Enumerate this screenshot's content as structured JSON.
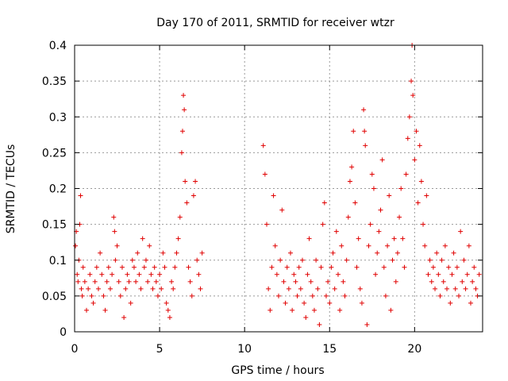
{
  "chart_data": {
    "type": "scatter",
    "title": "Day 170 of 2011, SRMTID for receiver wtzr",
    "xlabel": "GPS time / hours",
    "ylabel": "SRMTID / TECUs",
    "xlim": [
      0,
      24
    ],
    "ylim": [
      0,
      0.4
    ],
    "xticks": [
      0,
      5,
      10,
      15,
      20
    ],
    "yticks": [
      0,
      0.05,
      0.1,
      0.15,
      0.2,
      0.25,
      0.3,
      0.35,
      0.4
    ],
    "xtick_labels": [
      "0",
      "5",
      "10",
      "15",
      "20"
    ],
    "ytick_labels": [
      "0",
      "0.05",
      "0.1",
      "0.15",
      "0.2",
      "0.25",
      "0.3",
      "0.35",
      "0.4"
    ],
    "grid": true,
    "marker": "+",
    "marker_color": "#e00000",
    "series": [
      {
        "name": "SRMTID",
        "points": [
          [
            0.05,
            0.12
          ],
          [
            0.1,
            0.14
          ],
          [
            0.15,
            0.08
          ],
          [
            0.2,
            0.07
          ],
          [
            0.25,
            0.1
          ],
          [
            0.3,
            0.15
          ],
          [
            0.35,
            0.19
          ],
          [
            0.4,
            0.06
          ],
          [
            0.45,
            0.05
          ],
          [
            0.5,
            0.09
          ],
          [
            0.6,
            0.07
          ],
          [
            0.7,
            0.03
          ],
          [
            0.8,
            0.06
          ],
          [
            0.9,
            0.08
          ],
          [
            1.0,
            0.05
          ],
          [
            1.1,
            0.04
          ],
          [
            1.2,
            0.07
          ],
          [
            1.3,
            0.09
          ],
          [
            1.4,
            0.06
          ],
          [
            1.5,
            0.11
          ],
          [
            1.6,
            0.08
          ],
          [
            1.7,
            0.05
          ],
          [
            1.8,
            0.03
          ],
          [
            1.9,
            0.07
          ],
          [
            2.0,
            0.09
          ],
          [
            2.1,
            0.06
          ],
          [
            2.2,
            0.08
          ],
          [
            2.3,
            0.16
          ],
          [
            2.35,
            0.14
          ],
          [
            2.4,
            0.1
          ],
          [
            2.5,
            0.12
          ],
          [
            2.6,
            0.07
          ],
          [
            2.7,
            0.05
          ],
          [
            2.8,
            0.09
          ],
          [
            2.9,
            0.02
          ],
          [
            3.0,
            0.06
          ],
          [
            3.1,
            0.08
          ],
          [
            3.2,
            0.07
          ],
          [
            3.3,
            0.04
          ],
          [
            3.4,
            0.1
          ],
          [
            3.5,
            0.09
          ],
          [
            3.6,
            0.07
          ],
          [
            3.7,
            0.11
          ],
          [
            3.8,
            0.08
          ],
          [
            3.9,
            0.06
          ],
          [
            4.0,
            0.13
          ],
          [
            4.1,
            0.09
          ],
          [
            4.2,
            0.1
          ],
          [
            4.3,
            0.07
          ],
          [
            4.4,
            0.12
          ],
          [
            4.5,
            0.08
          ],
          [
            4.6,
            0.06
          ],
          [
            4.7,
            0.09
          ],
          [
            4.8,
            0.07
          ],
          [
            4.9,
            0.05
          ],
          [
            5.0,
            0.08
          ],
          [
            5.1,
            0.06
          ],
          [
            5.2,
            0.11
          ],
          [
            5.3,
            0.09
          ],
          [
            5.4,
            0.04
          ],
          [
            5.5,
            0.03
          ],
          [
            5.6,
            0.02
          ],
          [
            5.7,
            0.07
          ],
          [
            5.8,
            0.06
          ],
          [
            5.9,
            0.09
          ],
          [
            6.0,
            0.11
          ],
          [
            6.1,
            0.13
          ],
          [
            6.2,
            0.16
          ],
          [
            6.3,
            0.25
          ],
          [
            6.35,
            0.28
          ],
          [
            6.4,
            0.33
          ],
          [
            6.45,
            0.31
          ],
          [
            6.5,
            0.21
          ],
          [
            6.6,
            0.18
          ],
          [
            6.7,
            0.09
          ],
          [
            6.8,
            0.07
          ],
          [
            6.9,
            0.05
          ],
          [
            7.0,
            0.19
          ],
          [
            7.1,
            0.21
          ],
          [
            7.2,
            0.1
          ],
          [
            7.3,
            0.08
          ],
          [
            7.4,
            0.06
          ],
          [
            7.5,
            0.11
          ],
          [
            11.1,
            0.26
          ],
          [
            11.2,
            0.22
          ],
          [
            11.3,
            0.15
          ],
          [
            11.4,
            0.06
          ],
          [
            11.5,
            0.03
          ],
          [
            11.6,
            0.09
          ],
          [
            11.7,
            0.19
          ],
          [
            11.8,
            0.12
          ],
          [
            11.9,
            0.08
          ],
          [
            12.0,
            0.05
          ],
          [
            12.1,
            0.1
          ],
          [
            12.2,
            0.17
          ],
          [
            12.3,
            0.07
          ],
          [
            12.4,
            0.04
          ],
          [
            12.5,
            0.09
          ],
          [
            12.6,
            0.06
          ],
          [
            12.7,
            0.11
          ],
          [
            12.8,
            0.03
          ],
          [
            12.9,
            0.08
          ],
          [
            13.0,
            0.07
          ],
          [
            13.1,
            0.05
          ],
          [
            13.2,
            0.09
          ],
          [
            13.3,
            0.06
          ],
          [
            13.4,
            0.1
          ],
          [
            13.5,
            0.04
          ],
          [
            13.6,
            0.02
          ],
          [
            13.7,
            0.08
          ],
          [
            13.8,
            0.13
          ],
          [
            13.9,
            0.07
          ],
          [
            14.0,
            0.05
          ],
          [
            14.1,
            0.03
          ],
          [
            14.2,
            0.1
          ],
          [
            14.3,
            0.06
          ],
          [
            14.4,
            0.01
          ],
          [
            14.5,
            0.09
          ],
          [
            14.6,
            0.15
          ],
          [
            14.7,
            0.18
          ],
          [
            14.8,
            0.05
          ],
          [
            14.9,
            0.07
          ],
          [
            15.0,
            0.04
          ],
          [
            15.1,
            0.09
          ],
          [
            15.2,
            0.11
          ],
          [
            15.3,
            0.06
          ],
          [
            15.4,
            0.14
          ],
          [
            15.5,
            0.08
          ],
          [
            15.6,
            0.03
          ],
          [
            15.7,
            0.12
          ],
          [
            15.8,
            0.07
          ],
          [
            15.9,
            0.05
          ],
          [
            16.0,
            0.1
          ],
          [
            16.1,
            0.16
          ],
          [
            16.2,
            0.21
          ],
          [
            16.3,
            0.23
          ],
          [
            16.4,
            0.28
          ],
          [
            16.5,
            0.18
          ],
          [
            16.6,
            0.09
          ],
          [
            16.7,
            0.13
          ],
          [
            16.8,
            0.06
          ],
          [
            16.9,
            0.04
          ],
          [
            17.0,
            0.31
          ],
          [
            17.05,
            0.28
          ],
          [
            17.1,
            0.26
          ],
          [
            17.2,
            0.01
          ],
          [
            17.3,
            0.12
          ],
          [
            17.4,
            0.15
          ],
          [
            17.5,
            0.22
          ],
          [
            17.6,
            0.2
          ],
          [
            17.7,
            0.08
          ],
          [
            17.8,
            0.11
          ],
          [
            17.9,
            0.14
          ],
          [
            18.0,
            0.17
          ],
          [
            18.1,
            0.24
          ],
          [
            18.2,
            0.09
          ],
          [
            18.3,
            0.05
          ],
          [
            18.4,
            0.12
          ],
          [
            18.5,
            0.19
          ],
          [
            18.6,
            0.03
          ],
          [
            18.7,
            0.1
          ],
          [
            18.8,
            0.13
          ],
          [
            18.9,
            0.07
          ],
          [
            19.0,
            0.11
          ],
          [
            19.1,
            0.16
          ],
          [
            19.2,
            0.2
          ],
          [
            19.3,
            0.13
          ],
          [
            19.4,
            0.09
          ],
          [
            19.5,
            0.22
          ],
          [
            19.6,
            0.27
          ],
          [
            19.7,
            0.3
          ],
          [
            19.8,
            0.35
          ],
          [
            19.85,
            0.4
          ],
          [
            19.9,
            0.33
          ],
          [
            20.0,
            0.24
          ],
          [
            20.1,
            0.28
          ],
          [
            20.2,
            0.18
          ],
          [
            20.3,
            0.26
          ],
          [
            20.4,
            0.21
          ],
          [
            20.5,
            0.15
          ],
          [
            20.6,
            0.12
          ],
          [
            20.7,
            0.19
          ],
          [
            20.8,
            0.08
          ],
          [
            20.9,
            0.1
          ],
          [
            21.0,
            0.07
          ],
          [
            21.1,
            0.09
          ],
          [
            21.2,
            0.06
          ],
          [
            21.3,
            0.11
          ],
          [
            21.4,
            0.08
          ],
          [
            21.5,
            0.05
          ],
          [
            21.6,
            0.1
          ],
          [
            21.7,
            0.07
          ],
          [
            21.8,
            0.12
          ],
          [
            21.9,
            0.06
          ],
          [
            22.0,
            0.09
          ],
          [
            22.1,
            0.04
          ],
          [
            22.2,
            0.08
          ],
          [
            22.3,
            0.11
          ],
          [
            22.4,
            0.06
          ],
          [
            22.5,
            0.09
          ],
          [
            22.6,
            0.05
          ],
          [
            22.7,
            0.14
          ],
          [
            22.8,
            0.07
          ],
          [
            22.9,
            0.1
          ],
          [
            23.0,
            0.06
          ],
          [
            23.1,
            0.08
          ],
          [
            23.2,
            0.12
          ],
          [
            23.3,
            0.04
          ],
          [
            23.4,
            0.07
          ],
          [
            23.5,
            0.09
          ],
          [
            23.6,
            0.06
          ],
          [
            23.7,
            0.05
          ],
          [
            23.8,
            0.08
          ]
        ]
      }
    ]
  }
}
